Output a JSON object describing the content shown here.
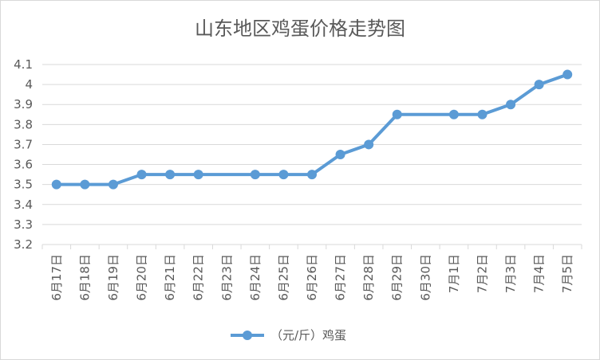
{
  "chart_data": {
    "type": "line",
    "title": "山东地区鸡蛋价格走势图",
    "xlabel": "",
    "ylabel": "",
    "ylim": [
      3.2,
      4.1
    ],
    "yticks": [
      "3.2",
      "3.3",
      "3.4",
      "3.5",
      "3.6",
      "3.7",
      "3.8",
      "3.9",
      "4",
      "4.1"
    ],
    "categories": [
      "6月17日",
      "6月18日",
      "6月19日",
      "6月20日",
      "6月21日",
      "6月22日",
      "6月23日",
      "6月24日",
      "6月25日",
      "6月26日",
      "6月27日",
      "6月28日",
      "6月29日",
      "6月30日",
      "7月1日",
      "7月2日",
      "7月3日",
      "7月4日",
      "7月5日"
    ],
    "series": [
      {
        "name": "（元/斤）鸡蛋",
        "color": "#5b9bd5",
        "points": [
          {
            "x": "6月17日",
            "y": 3.5
          },
          {
            "x": "6月18日",
            "y": 3.5
          },
          {
            "x": "6月19日",
            "y": 3.5
          },
          {
            "x": "6月20日",
            "y": 3.55
          },
          {
            "x": "6月21日",
            "y": 3.55
          },
          {
            "x": "6月22日",
            "y": 3.55
          },
          {
            "x": "6月24日",
            "y": 3.55
          },
          {
            "x": "6月25日",
            "y": 3.55
          },
          {
            "x": "6月26日",
            "y": 3.55
          },
          {
            "x": "6月27日",
            "y": 3.65
          },
          {
            "x": "6月28日",
            "y": 3.7
          },
          {
            "x": "6月29日",
            "y": 3.85
          },
          {
            "x": "7月1日",
            "y": 3.85
          },
          {
            "x": "7月2日",
            "y": 3.85
          },
          {
            "x": "7月3日",
            "y": 3.9
          },
          {
            "x": "7月4日",
            "y": 4.0
          },
          {
            "x": "7月5日",
            "y": 4.05
          }
        ]
      }
    ],
    "grid": true,
    "legend": "bottom"
  }
}
